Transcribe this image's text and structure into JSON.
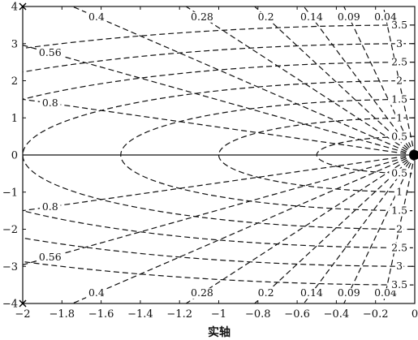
{
  "chart_data": {
    "type": "line",
    "title": "",
    "xlabel": "实轴",
    "ylabel": "",
    "xlim": [
      -2,
      0
    ],
    "ylim": [
      -4,
      4
    ],
    "xticks": [
      "−2",
      "−1.8",
      "−1.6",
      "−1.4",
      "−1.2",
      "−1",
      "−0.8",
      "−0.6",
      "−0.4",
      "−0.2",
      "0"
    ],
    "yticks": [
      "4",
      "3",
      "2",
      "1",
      "0",
      "−1",
      "−2",
      "−3",
      "−4"
    ],
    "grid": "s-plane damping/natural-frequency grid (dashed)",
    "damping_ratios": [
      0.04,
      0.09,
      0.14,
      0.2,
      0.28,
      0.4,
      0.56,
      0.8
    ],
    "natural_frequencies": [
      0.5,
      1,
      1.5,
      2,
      2.5,
      3,
      3.5
    ],
    "zeta_labels_top": [
      {
        "text": "0.4",
        "zeta": 0.4
      },
      {
        "text": "0.28",
        "zeta": 0.28
      },
      {
        "text": "0.2",
        "zeta": 0.2
      },
      {
        "text": "0.14",
        "zeta": 0.14
      },
      {
        "text": "0.09",
        "zeta": 0.09
      },
      {
        "text": "0.04",
        "zeta": 0.04
      }
    ],
    "zeta_labels_left": [
      {
        "text": "0.56",
        "zeta": 0.56
      },
      {
        "text": "0.8",
        "zeta": 0.8
      }
    ],
    "zeta_labels_bottom": [
      {
        "text": "0.4",
        "zeta": 0.4
      },
      {
        "text": "0.28",
        "zeta": 0.28
      },
      {
        "text": "0.2",
        "zeta": 0.2
      },
      {
        "text": "0.14",
        "zeta": 0.14
      },
      {
        "text": "0.09",
        "zeta": 0.09
      },
      {
        "text": "0.04",
        "zeta": 0.04
      }
    ],
    "zeta_labels_left_bottom": [
      {
        "text": "0.8",
        "zeta": 0.8
      },
      {
        "text": "0.56",
        "zeta": 0.56
      }
    ],
    "wn_labels_upper": [
      "3.5",
      "3",
      "2.5",
      "2",
      "1.5",
      "1",
      "0.5"
    ],
    "wn_labels_lower": [
      "0.5",
      "1",
      "1.5",
      "2",
      "2.5",
      "3",
      "3.5"
    ],
    "poles": [
      {
        "x": 0,
        "y": 0,
        "marker": "dot"
      }
    ],
    "endpoint_markers": [
      {
        "x": -2,
        "y": 4,
        "marker": "x"
      },
      {
        "x": -2,
        "y": -4,
        "marker": "x"
      }
    ]
  }
}
